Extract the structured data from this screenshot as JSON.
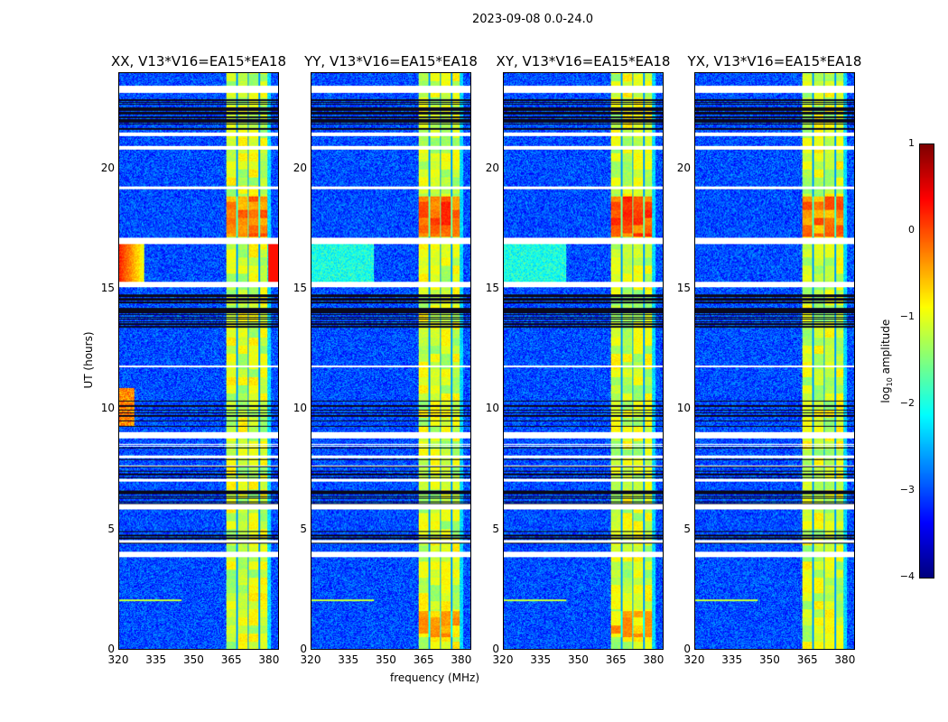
{
  "chart_data": {
    "type": "heatmap",
    "suptitle": "2023-09-08 0.0-24.0",
    "panels": [
      {
        "title": "XX, V13*V16=EA15*EA18"
      },
      {
        "title": "YY, V13*V16=EA15*EA18"
      },
      {
        "title": "XY, V13*V16=EA15*EA18"
      },
      {
        "title": "YX, V13*V16=EA15*EA18"
      }
    ],
    "xlabel": "frequency (MHz)",
    "ylabel": "UT (hours)",
    "xlim": [
      320,
      384
    ],
    "ylim": [
      0,
      24
    ],
    "xticks": [
      "320",
      "335",
      "350",
      "365",
      "380"
    ],
    "yticks": [
      "0",
      "5",
      "10",
      "15",
      "20"
    ],
    "colorbar": {
      "label": "log10 amplitude",
      "label_main": "log",
      "label_sub": "10",
      "label_rest": " amplitude",
      "range": [
        -4,
        1
      ],
      "ticks": [
        "1",
        "0",
        "−1",
        "−2",
        "−3",
        "−4"
      ],
      "colormap": "jet"
    },
    "rfi_band_mhz": [
      363,
      381
    ],
    "flagged_hours": [
      [
        23.2,
        23.5
      ],
      [
        21.4,
        21.55
      ],
      [
        20.85,
        20.98
      ],
      [
        19.2,
        19.3
      ],
      [
        16.9,
        17.15
      ],
      [
        15.1,
        15.3
      ],
      [
        11.75,
        11.85
      ],
      [
        8.8,
        9.05
      ],
      [
        5.85,
        6.05
      ],
      [
        4.45,
        4.55
      ],
      [
        3.85,
        4.05
      ]
    ]
  }
}
